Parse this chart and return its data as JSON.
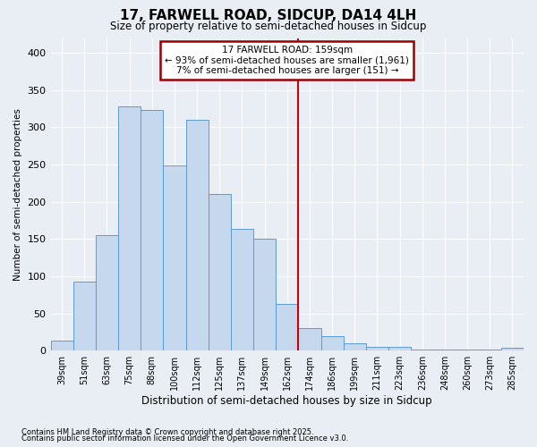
{
  "title": "17, FARWELL ROAD, SIDCUP, DA14 4LH",
  "subtitle": "Size of property relative to semi-detached houses in Sidcup",
  "xlabel": "Distribution of semi-detached houses by size in Sidcup",
  "ylabel": "Number of semi-detached properties",
  "categories": [
    "39sqm",
    "51sqm",
    "63sqm",
    "75sqm",
    "88sqm",
    "100sqm",
    "112sqm",
    "125sqm",
    "137sqm",
    "149sqm",
    "162sqm",
    "174sqm",
    "186sqm",
    "199sqm",
    "211sqm",
    "223sqm",
    "236sqm",
    "248sqm",
    "260sqm",
    "273sqm",
    "285sqm"
  ],
  "values": [
    14,
    93,
    155,
    328,
    323,
    249,
    310,
    210,
    163,
    150,
    63,
    30,
    20,
    10,
    5,
    5,
    2,
    1,
    1,
    1,
    4
  ],
  "bar_color": "#c5d8ed",
  "bar_edge_color": "#5b9bd5",
  "highlight_line_index": 10,
  "annotation_title": "17 FARWELL ROAD: 159sqm",
  "annotation_line1": "← 93% of semi-detached houses are smaller (1,961)",
  "annotation_line2": "7% of semi-detached houses are larger (151) →",
  "annotation_box_facecolor": "#ffffff",
  "annotation_box_edgecolor": "#990000",
  "vline_color": "#cc0000",
  "yticks": [
    0,
    50,
    100,
    150,
    200,
    250,
    300,
    350,
    400
  ],
  "ylim": [
    0,
    420
  ],
  "bg_color": "#e8eef4",
  "grid_color": "#ffffff",
  "footer1": "Contains HM Land Registry data © Crown copyright and database right 2025.",
  "footer2": "Contains public sector information licensed under the Open Government Licence v3.0."
}
